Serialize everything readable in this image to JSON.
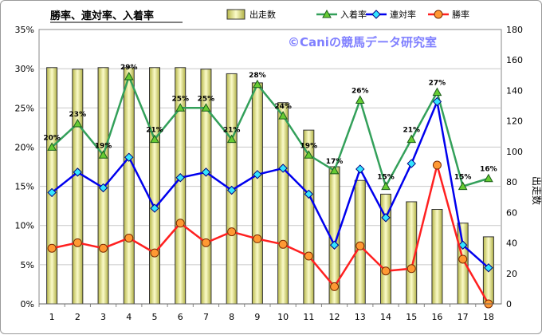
{
  "chart_data": {
    "type": "bar",
    "title": "勝率、連対率、入着率",
    "watermark": "©Caniの競馬データ研究室",
    "xlabel": "",
    "ylabel": "",
    "y2label": "出走数",
    "categories": [
      "1",
      "2",
      "3",
      "4",
      "5",
      "6",
      "7",
      "8",
      "9",
      "10",
      "11",
      "12",
      "13",
      "14",
      "15",
      "16",
      "17",
      "18"
    ],
    "ylim": [
      0,
      35
    ],
    "yticks": [
      "0%",
      "5%",
      "10%",
      "15%",
      "20%",
      "25%",
      "30%",
      "35%"
    ],
    "y2lim": [
      0,
      180
    ],
    "y2ticks": [
      "0",
      "20",
      "40",
      "60",
      "80",
      "100",
      "120",
      "140",
      "160",
      "180"
    ],
    "grid": true,
    "legend_position": "top",
    "series": [
      {
        "name": "出走数",
        "kind": "bar",
        "axis": "right",
        "color": "#d8d86a",
        "values": [
          155,
          154,
          155,
          155,
          155,
          155,
          154,
          151,
          145,
          132,
          114,
          90,
          81,
          72,
          67,
          62,
          53,
          44
        ]
      },
      {
        "name": "入着率",
        "kind": "line",
        "axis": "left",
        "color": "#33a05a",
        "marker": "triangle",
        "marker_color": "#66cc33",
        "values": [
          20,
          23,
          19,
          29,
          21,
          25,
          25,
          21,
          28,
          24,
          19,
          17,
          26,
          15,
          21,
          27,
          15,
          16
        ],
        "labels": [
          "20%",
          "23%",
          "19%",
          "29%",
          "21%",
          "25%",
          "25%",
          "21%",
          "28%",
          "24%",
          "19%",
          "17%",
          "26%",
          "15%",
          "21%",
          "27%",
          "15%",
          "16%"
        ]
      },
      {
        "name": "連対率",
        "kind": "line",
        "axis": "left",
        "color": "#0000ee",
        "marker": "diamond",
        "marker_color": "#33e5ff",
        "values": [
          14.2,
          16.8,
          14.8,
          18.7,
          12.2,
          16.1,
          16.8,
          14.5,
          16.5,
          17.3,
          14,
          7.5,
          17.2,
          11,
          17.9,
          25.8,
          7.5,
          4.6
        ]
      },
      {
        "name": "勝率",
        "kind": "line",
        "axis": "left",
        "color": "#ff2020",
        "marker": "circle",
        "marker_color": "#ff9933",
        "values": [
          7.1,
          7.8,
          7.1,
          8.4,
          6.5,
          10.3,
          7.8,
          9.2,
          8.3,
          7.6,
          6.1,
          2.2,
          7.4,
          4.2,
          4.5,
          17.7,
          5.7,
          0
        ]
      }
    ]
  }
}
